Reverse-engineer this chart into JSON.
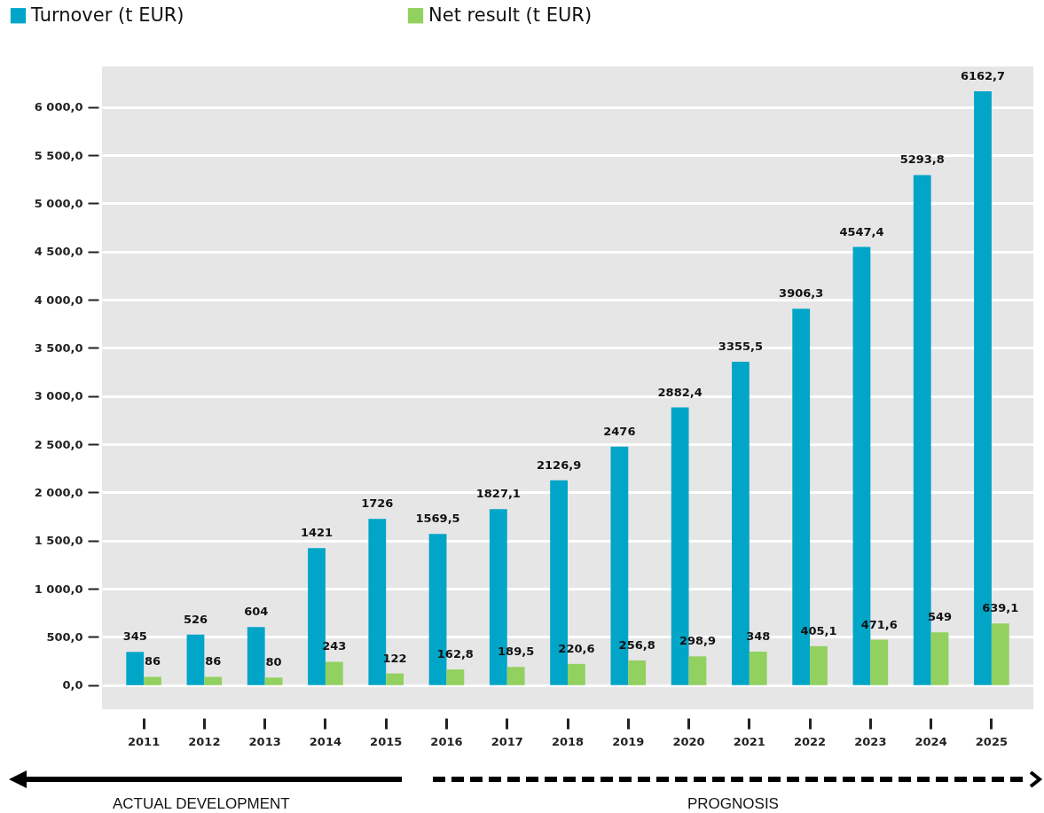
{
  "chart_data": {
    "type": "bar",
    "categories": [
      "2011",
      "2012",
      "2013",
      "2014",
      "2015",
      "2016",
      "2017",
      "2018",
      "2019",
      "2020",
      "2021",
      "2022",
      "2023",
      "2024",
      "2025"
    ],
    "series": [
      {
        "name": "Turnover (t EUR)",
        "color": "#00a5c8",
        "values": [
          345,
          526,
          604,
          1421,
          1726,
          1569.5,
          1827.1,
          2126.9,
          2476,
          2882.4,
          3355.5,
          3906.3,
          4547.4,
          5293.8,
          6162.7
        ],
        "value_labels": [
          "345",
          "526",
          "604",
          "1421",
          "1726",
          "1569,5",
          "1827,1",
          "2126,9",
          "2476",
          "2882,4",
          "3355,5",
          "3906,3",
          "4547,4",
          "5293,8",
          "6162,7"
        ]
      },
      {
        "name": "Net result (t EUR)",
        "color": "#92d05f",
        "values": [
          86,
          86,
          80,
          243,
          122,
          162.8,
          189.5,
          220.6,
          256.8,
          298.9,
          348,
          405.1,
          471.6,
          549,
          639.1
        ],
        "value_labels": [
          "86",
          "86",
          "80",
          "243",
          "122",
          "162,8",
          "189,5",
          "220,6",
          "256,8",
          "298,9",
          "348",
          "405,1",
          "471,6",
          "549",
          "639,1"
        ]
      }
    ],
    "ylim": [
      -250,
      6420
    ],
    "yticks": [
      {
        "value": 0,
        "label": "0,0"
      },
      {
        "value": 500,
        "label": "500,0"
      },
      {
        "value": 1000,
        "label": "1 000,0"
      },
      {
        "value": 1500,
        "label": "1 500,0"
      },
      {
        "value": 2000,
        "label": "2 000,0"
      },
      {
        "value": 2500,
        "label": "2 500,0"
      },
      {
        "value": 3000,
        "label": "3 000,0"
      },
      {
        "value": 3500,
        "label": "3 500,0"
      },
      {
        "value": 4000,
        "label": "4 000,0"
      },
      {
        "value": 4500,
        "label": "4 500,0"
      },
      {
        "value": 5000,
        "label": "5 000,0"
      },
      {
        "value": 5500,
        "label": "5 500,0"
      },
      {
        "value": 6000,
        "label": "6 000,0"
      }
    ],
    "grid": "y",
    "legend": "top left",
    "annotations": [
      "ACTUAL DEVELOPMENT",
      "PROGNOSIS"
    ]
  }
}
